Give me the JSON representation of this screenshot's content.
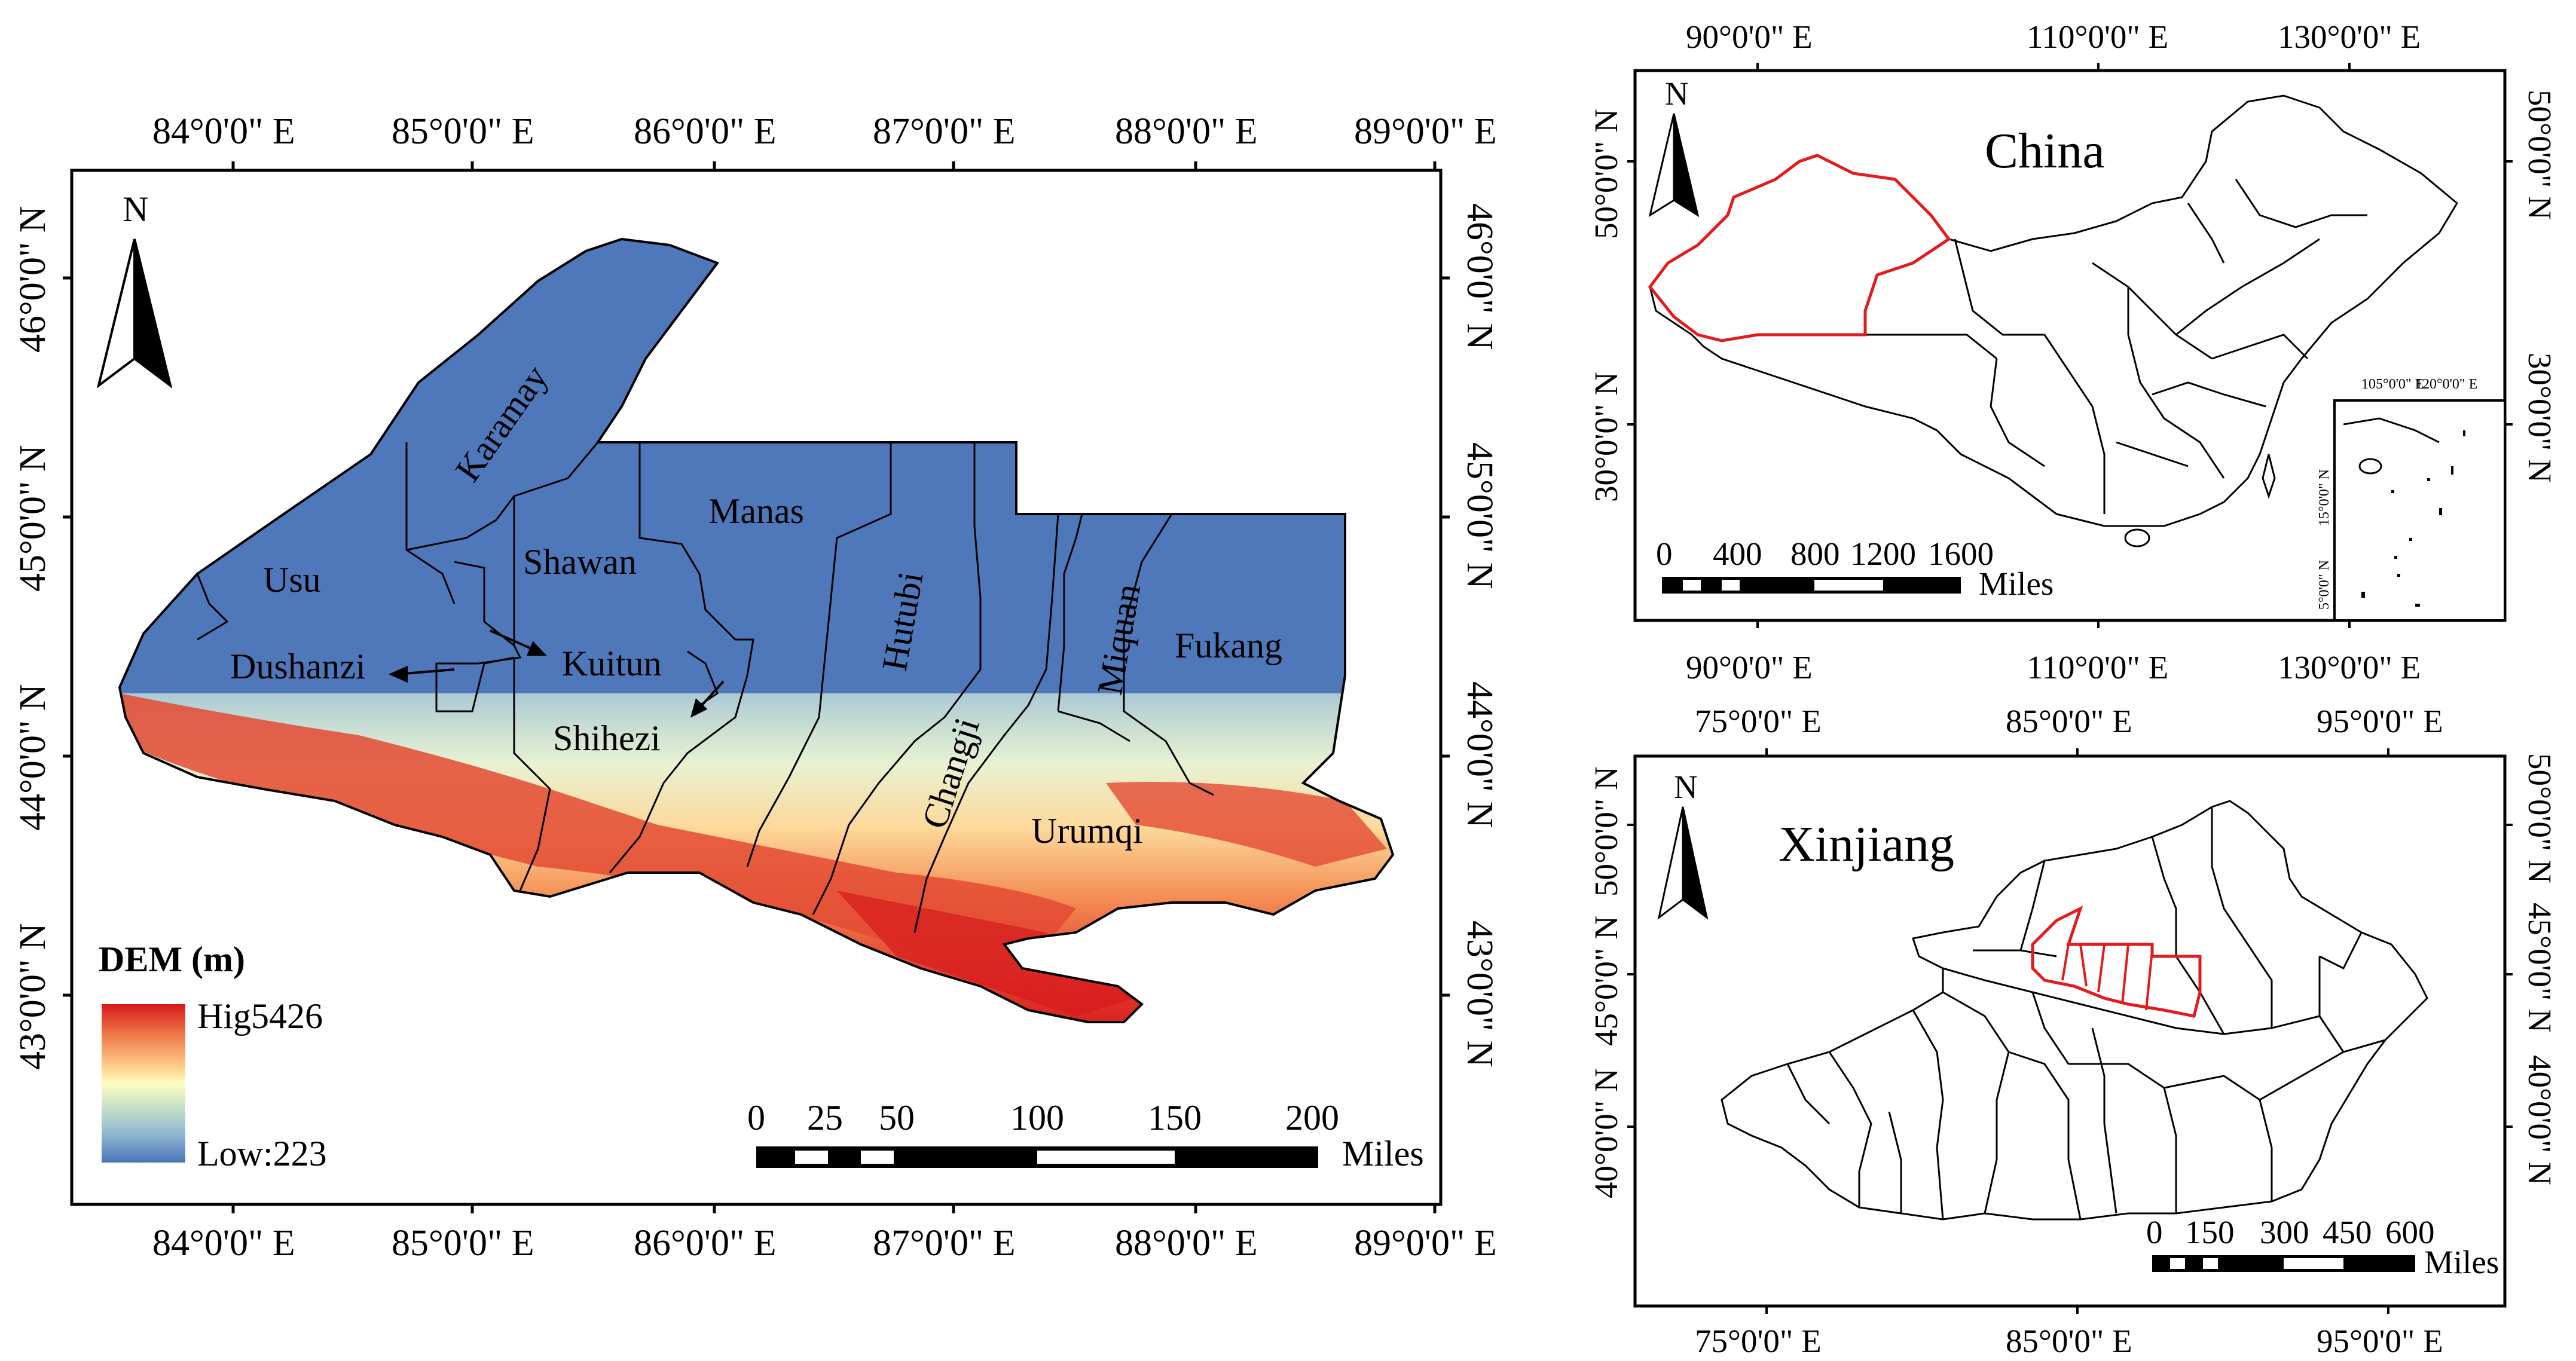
{
  "main_map": {
    "top_lon_ticks": [
      "84°0'0\" E",
      "85°0'0\" E",
      "86°0'0\" E",
      "87°0'0\" E",
      "88°0'0\" E",
      "89°0'0\" E"
    ],
    "bottom_lon_ticks": [
      "84°0'0\" E",
      "85°0'0\" E",
      "86°0'0\" E",
      "87°0'0\" E",
      "88°0'0\" E",
      "89°0'0\" E"
    ],
    "left_lat_ticks": [
      "46°0'0\" N",
      "45°0'0\" N",
      "44°0'0\" N",
      "43°0'0\" N"
    ],
    "right_lat_ticks": [
      "46°0'0\" N",
      "45°0'0\" N",
      "44°0'0\" N",
      "43°0'0\" N"
    ],
    "north": "N",
    "regions": {
      "karamay": "Karamay",
      "usu": "Usu",
      "shawan": "Shawan",
      "manas": "Manas",
      "hutubi": "Hutubi",
      "miquan": "Miquan",
      "fukang": "Fukang",
      "dushanzi": "Dushanzi",
      "kuitun": "Kuitun",
      "shihezi": "Shihezi",
      "changji": "Changji",
      "urumqi": "Urumqi"
    },
    "legend": {
      "title": "DEM (m)",
      "high": "Hig5426",
      "low": "Low:223",
      "colors": [
        "#d7191c",
        "#f07c4a",
        "#fdd18c",
        "#fefec0",
        "#c7e0c8",
        "#90b8cf",
        "#4a74b8"
      ]
    },
    "scale": {
      "labels": [
        "0",
        "25",
        "50",
        "100",
        "150",
        "200"
      ],
      "unit": "Miles"
    }
  },
  "china_map": {
    "title": "China",
    "north": "N",
    "top_lon_ticks": [
      "90°0'0\" E",
      "110°0'0\" E",
      "130°0'0\" E"
    ],
    "bottom_lon_ticks": [
      "90°0'0\" E",
      "110°0'0\" E",
      "130°0'0\" E"
    ],
    "left_lat_ticks": [
      "50°0'0\" N",
      "30°0'0\" N"
    ],
    "right_lat_ticks": [
      "50°0'0\" N",
      "30°0'0\" N"
    ],
    "scale": {
      "labels": [
        "0",
        "400",
        "800",
        "1200",
        "1600"
      ],
      "unit": "Miles"
    },
    "inset": {
      "lon_ticks": [
        "105°0'0\" E",
        "120°0'0\" E"
      ],
      "lat_ticks": [
        "15°0'0\" N",
        "5°0'0\" N"
      ]
    },
    "highlight_color": "#e41a1c"
  },
  "xinjiang_map": {
    "title": "Xinjiang",
    "north": "N",
    "top_lon_ticks": [
      "75°0'0\" E",
      "85°0'0\" E",
      "95°0'0\" E"
    ],
    "bottom_lon_ticks": [
      "75°0'0\" E",
      "85°0'0\" E",
      "95°0'0\" E"
    ],
    "left_lat_ticks": [
      "50°0'0\" N",
      "45°0'0\" N",
      "40°0'0\" N"
    ],
    "right_lat_ticks": [
      "50°0'0\" N",
      "45°0'0\" N",
      "40°0'0\" N"
    ],
    "scale": {
      "labels": [
        "0",
        "150",
        "300",
        "450",
        "600"
      ],
      "unit": "Miles"
    },
    "highlight_color": "#e41a1c"
  }
}
